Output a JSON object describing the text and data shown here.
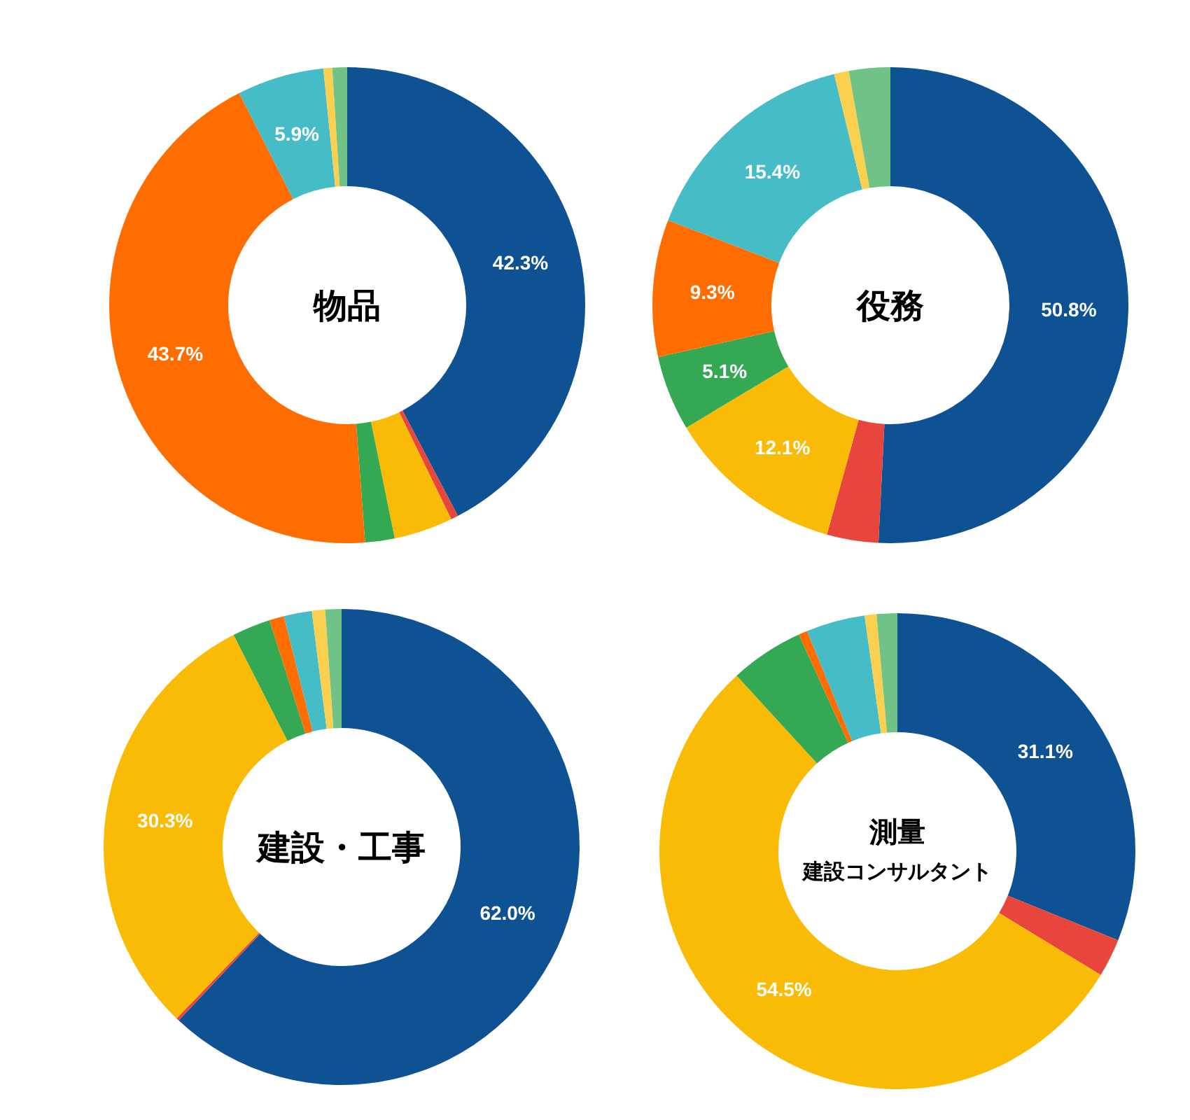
{
  "chart_data": [
    {
      "type": "donut",
      "title": "物品",
      "categories": [
        null,
        null,
        null,
        null,
        null,
        null,
        null,
        null
      ],
      "values": [
        42.3,
        0.5,
        4.0,
        2.0,
        43.7,
        5.9,
        0.6,
        1.0
      ],
      "value_labels": [
        "42.3%",
        null,
        null,
        null,
        "43.7%",
        "5.9%",
        null,
        null
      ],
      "colors": [
        "#0f5294",
        "#e8453c",
        "#f9bb05",
        "#34a853",
        "#ff6d00",
        "#46bdc6",
        "#fcd04f",
        "#71c287"
      ]
    },
    {
      "type": "donut",
      "title": "役務",
      "categories": [
        null,
        null,
        null,
        null,
        null,
        null,
        null,
        null
      ],
      "values": [
        50.8,
        3.5,
        12.1,
        5.1,
        9.3,
        15.4,
        1.0,
        2.8
      ],
      "value_labels": [
        "50.8%",
        null,
        "12.1%",
        "5.1%",
        "9.3%",
        "15.4%",
        null,
        null
      ],
      "colors": [
        "#0f5294",
        "#e8453c",
        "#f9bb05",
        "#34a853",
        "#ff6d00",
        "#46bdc6",
        "#fcd04f",
        "#71c287"
      ]
    },
    {
      "type": "donut",
      "title": "建設・工事",
      "categories": [
        null,
        null,
        null,
        null,
        null,
        null,
        null,
        null
      ],
      "values": [
        62.0,
        0.2,
        30.3,
        2.6,
        1.0,
        1.9,
        0.9,
        1.1
      ],
      "value_labels": [
        "62.0%",
        null,
        "30.3%",
        null,
        null,
        null,
        null,
        null
      ],
      "colors": [
        "#0f5294",
        "#e8453c",
        "#f9bb05",
        "#34a853",
        "#ff6d00",
        "#46bdc6",
        "#fcd04f",
        "#71c287"
      ]
    },
    {
      "type": "donut",
      "title": "測量",
      "subtitle": "建設コンサルタント",
      "categories": [
        null,
        null,
        null,
        null,
        null,
        null,
        null,
        null
      ],
      "values": [
        31.1,
        2.6,
        54.5,
        5.0,
        0.6,
        4.0,
        0.8,
        1.4
      ],
      "value_labels": [
        "31.1%",
        null,
        "54.5%",
        null,
        null,
        null,
        null,
        null
      ],
      "colors": [
        "#0f5294",
        "#e8453c",
        "#f9bb05",
        "#34a853",
        "#ff6d00",
        "#46bdc6",
        "#fcd04f",
        "#71c287"
      ]
    }
  ]
}
